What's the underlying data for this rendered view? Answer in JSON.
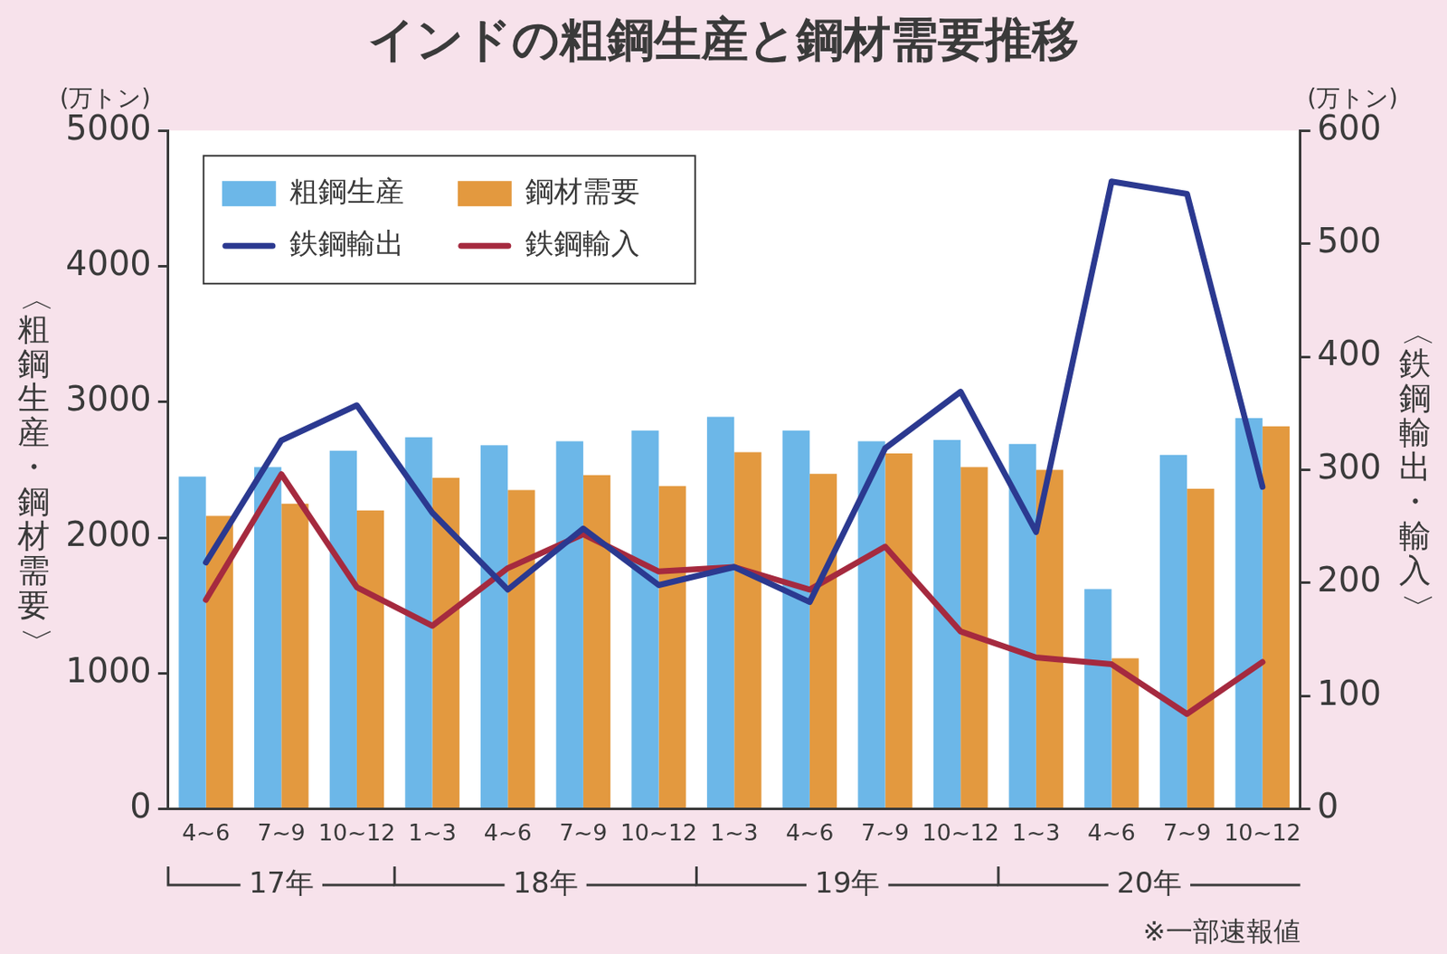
{
  "chart_data": {
    "type": "bar",
    "title": "インドの粗鋼生産と鋼材需要推移",
    "categories": [
      "4~6",
      "7~9",
      "10~12",
      "1~3",
      "4~6",
      "7~9",
      "10~12",
      "1~3",
      "4~6",
      "7~9",
      "10~12",
      "1~3",
      "4~6",
      "7~9",
      "10~12"
    ],
    "year_labels": [
      "17年",
      "17年",
      "17年",
      "18年",
      "18年",
      "18年",
      "18年",
      "19年",
      "19年",
      "19年",
      "19年",
      "20年",
      "20年",
      "20年",
      "20年"
    ],
    "y_unit": "(万トン)",
    "y_label": "〈粗鋼生産・鋼材需要〉",
    "y2_unit": "(万トン)",
    "y2_label": "〈鉄鋼輸出・輸入〉",
    "note": "※一部速報値",
    "ylim": [
      0,
      5000
    ],
    "yticks": [
      0,
      1000,
      2000,
      3000,
      4000,
      5000
    ],
    "y2lim": [
      0,
      600
    ],
    "y2ticks": [
      0,
      100,
      200,
      300,
      400,
      500,
      600
    ],
    "grid": false,
    "legend": "upper left",
    "series": [
      {
        "name": "粗鋼生産",
        "type": "bar",
        "color": "#6cb7e8",
        "values": [
          2450,
          2520,
          2640,
          2740,
          2680,
          2710,
          2790,
          2890,
          2790,
          2710,
          2720,
          2690,
          1620,
          2610,
          2880
        ]
      },
      {
        "name": "鋼材需要",
        "type": "bar",
        "color": "#e3993f",
        "values": [
          2160,
          2250,
          2200,
          2440,
          2350,
          2460,
          2380,
          2630,
          2470,
          2620,
          2520,
          2500,
          1110,
          2360,
          2820
        ]
      },
      {
        "name": "鉄鋼輸出",
        "type": "line",
        "axis": "y2",
        "color": "#2b3990",
        "values": [
          218,
          326,
          357,
          262,
          194,
          248,
          198,
          214,
          183,
          319,
          369,
          245,
          555,
          544,
          285
        ]
      },
      {
        "name": "鉄鋼輸入",
        "type": "line",
        "axis": "y2",
        "color": "#a52a3f",
        "values": [
          185,
          296,
          196,
          162,
          213,
          243,
          210,
          214,
          194,
          232,
          157,
          134,
          128,
          84,
          130
        ]
      }
    ]
  }
}
